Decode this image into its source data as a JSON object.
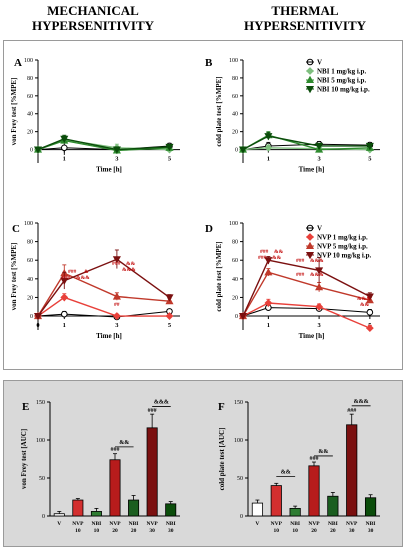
{
  "titles": {
    "left": [
      "MECHANICAL",
      "HYPERSENITIVITY"
    ],
    "right": [
      "THERMAL",
      "HYPERSENITIVITY"
    ]
  },
  "chart_data": [
    {
      "panel": "A",
      "type": "line",
      "ylabel": "von Frey test [%MPE]",
      "xlabel": "Time [h]",
      "ylim": [
        0,
        100
      ],
      "yticks": [
        0,
        20,
        40,
        60,
        80,
        100
      ],
      "xticks": [
        1,
        3,
        5
      ],
      "x": [
        0,
        1,
        3,
        5
      ],
      "series": [
        {
          "name": "V",
          "values": [
            0,
            2,
            0,
            4
          ],
          "err": [
            2,
            8,
            3,
            3
          ],
          "color": "#000000",
          "marker": "open-circle"
        },
        {
          "name": "NBI 1 mg/kg i.p.",
          "values": [
            0,
            11,
            2,
            0
          ],
          "err": [
            2,
            4,
            4,
            2
          ],
          "color": "#7fbf7f",
          "marker": "diamond"
        },
        {
          "name": "NBI 5 mg/kg i.p.",
          "values": [
            0,
            10,
            -1,
            2
          ],
          "err": [
            2,
            3,
            4,
            2
          ],
          "color": "#2e8b2e",
          "marker": "triangle"
        },
        {
          "name": "NBI 10 mg/kg i.p.",
          "values": [
            0,
            12,
            0,
            3
          ],
          "err": [
            2,
            4,
            3,
            2
          ],
          "color": "#0b4d0b",
          "marker": "triangle-down"
        }
      ]
    },
    {
      "panel": "B",
      "type": "line",
      "ylabel": "cold plate test [%MPE]",
      "xlabel": "Time [h]",
      "ylim": [
        0,
        100
      ],
      "yticks": [
        0,
        20,
        40,
        60,
        80,
        100
      ],
      "xticks": [
        1,
        3,
        5
      ],
      "x": [
        0,
        1,
        3,
        5
      ],
      "series": [
        {
          "name": "V",
          "values": [
            0,
            4,
            6,
            5
          ],
          "err": [
            2,
            4,
            3,
            3
          ],
          "color": "#000000",
          "marker": "open-circle"
        },
        {
          "name": "NBI 1 mg/kg i.p.",
          "values": [
            0,
            2,
            1,
            0
          ],
          "err": [
            2,
            3,
            3,
            2
          ],
          "color": "#7fbf7f",
          "marker": "diamond"
        },
        {
          "name": "NBI 5 mg/kg i.p.",
          "values": [
            0,
            16,
            0,
            2
          ],
          "err": [
            2,
            4,
            3,
            2
          ],
          "color": "#2e8b2e",
          "marker": "triangle"
        },
        {
          "name": "NBI 10 mg/kg i.p.",
          "values": [
            0,
            15,
            4,
            4
          ],
          "err": [
            2,
            4,
            3,
            2
          ],
          "color": "#0b4d0b",
          "marker": "triangle-down"
        }
      ]
    },
    {
      "panel": "C",
      "type": "line",
      "ylabel": "von Frey test [%MPE]",
      "xlabel": "Time [h]",
      "ylim": [
        0,
        100
      ],
      "yticks": [
        0,
        20,
        40,
        60,
        80,
        100
      ],
      "xticks": [
        0,
        1,
        3,
        5
      ],
      "x": [
        0,
        1,
        3,
        5
      ],
      "series": [
        {
          "name": "V",
          "values": [
            0,
            2,
            -1,
            5
          ],
          "err": [
            2,
            3,
            2,
            2
          ],
          "color": "#000000",
          "marker": "open-circle"
        },
        {
          "name": "NVP 1 mg/kg i.p.",
          "values": [
            0,
            20,
            0,
            0
          ],
          "err": [
            2,
            4,
            2,
            2
          ],
          "color": "#e8403a",
          "marker": "diamond"
        },
        {
          "name": "NVP 5 mg/kg i.p.",
          "values": [
            0,
            46,
            21,
            16
          ],
          "err": [
            2,
            9,
            4,
            3
          ],
          "color": "#c0392b",
          "marker": "triangle"
        },
        {
          "name": "NVP 10 mg/kg i.p.",
          "values": [
            0,
            38,
            61,
            20
          ],
          "err": [
            2,
            9,
            10,
            3
          ],
          "color": "#7b1010",
          "marker": "triangle-down"
        }
      ],
      "annotations": [
        "###",
        "&",
        "###",
        "&&&",
        "##",
        "###",
        "&&",
        "&&&"
      ]
    },
    {
      "panel": "D",
      "type": "line",
      "ylabel": "cold plate test [%MPE]",
      "xlabel": "Time [h]",
      "ylim": [
        0,
        100
      ],
      "yticks": [
        0,
        20,
        40,
        60,
        80,
        100
      ],
      "xticks": [
        1,
        3,
        5
      ],
      "x": [
        0,
        1,
        3,
        5
      ],
      "series": [
        {
          "name": "V",
          "values": [
            0,
            9,
            8,
            4
          ],
          "err": [
            2,
            3,
            3,
            3
          ],
          "color": "#000000",
          "marker": "open-circle"
        },
        {
          "name": "NVP 1 mg/kg i.p.",
          "values": [
            0,
            14,
            10,
            -13
          ],
          "err": [
            2,
            4,
            3,
            3
          ],
          "color": "#e8403a",
          "marker": "diamond"
        },
        {
          "name": "NVP 5 mg/kg i.p.",
          "values": [
            0,
            47,
            31,
            17
          ],
          "err": [
            2,
            4,
            5,
            3
          ],
          "color": "#c0392b",
          "marker": "triangle"
        },
        {
          "name": "NVP 10 mg/kg i.p.",
          "values": [
            0,
            60,
            49,
            21
          ],
          "err": [
            2,
            4,
            14,
            4
          ],
          "color": "#7b1010",
          "marker": "triangle-down"
        }
      ],
      "annotations": [
        "###",
        "&&",
        "###",
        "&&",
        "###",
        "&&&",
        "###",
        "&&&",
        "&&&",
        "&&"
      ]
    },
    {
      "panel": "E",
      "type": "bar",
      "ylabel": "von Frey test [AUC]",
      "ylim": [
        0,
        150
      ],
      "yticks": [
        0,
        50,
        100,
        150
      ],
      "categories": [
        [
          "V",
          ""
        ],
        [
          "NVP",
          "10"
        ],
        [
          "NBI",
          "10"
        ],
        [
          "NVP",
          "20"
        ],
        [
          "NBI",
          "20"
        ],
        [
          "NVP",
          "30"
        ],
        [
          "NBI",
          "30"
        ]
      ],
      "values": [
        3,
        21,
        6,
        74,
        21,
        116,
        16
      ],
      "err": [
        3,
        2,
        4,
        8,
        6,
        18,
        3
      ],
      "colors": [
        "#ffffff",
        "#d32f2f",
        "#2e7d32",
        "#b71c1c",
        "#1b5e20",
        "#7b1010",
        "#0b4d0b"
      ],
      "annotations": [
        "###",
        "&&",
        "###",
        "&&&"
      ]
    },
    {
      "panel": "F",
      "type": "bar",
      "ylabel": "cold plate test [AUC]",
      "ylim": [
        0,
        150
      ],
      "yticks": [
        0,
        50,
        100,
        150
      ],
      "categories": [
        [
          "V",
          ""
        ],
        [
          "NVP",
          "10"
        ],
        [
          "NBI",
          "10"
        ],
        [
          "NVP",
          "20"
        ],
        [
          "NBI",
          "20"
        ],
        [
          "NVP",
          "30"
        ],
        [
          "NBI",
          "30"
        ]
      ],
      "values": [
        17,
        40,
        10,
        66,
        26,
        120,
        24
      ],
      "err": [
        4,
        3,
        3,
        5,
        5,
        14,
        4
      ],
      "colors": [
        "#ffffff",
        "#d32f2f",
        "#2e7d32",
        "#b71c1c",
        "#1b5e20",
        "#7b1010",
        "#0b4d0b"
      ],
      "annotations": [
        "&&",
        "###",
        "&&",
        "###",
        "&&&"
      ]
    }
  ]
}
